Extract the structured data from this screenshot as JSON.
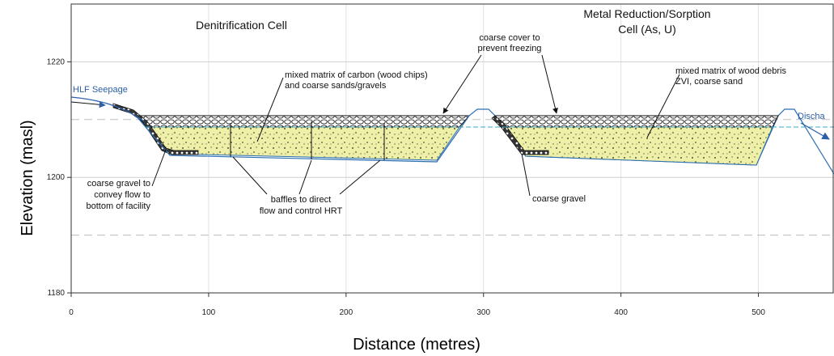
{
  "title_left": "Denitrification Cell",
  "title_right": [
    "Metal Reduction/Sorption",
    "Cell (As, U)"
  ],
  "axes": {
    "x": {
      "label": "Distance (metres)",
      "lim": [
        0,
        555
      ],
      "ticks": [
        0,
        100,
        200,
        300,
        400,
        500
      ]
    },
    "y": {
      "label": "Elevation (masl)",
      "lim": [
        1180,
        1230
      ],
      "ticks": [
        1180,
        1200,
        1220
      ],
      "minor_ticks": [
        1190,
        1210
      ]
    }
  },
  "annotations": {
    "seepage": "HLF Seepage",
    "discharge": "Discha",
    "cover": [
      "coarse cover to",
      "prevent freezing"
    ],
    "matrix_left": [
      "mixed matrix of carbon (wood chips)",
      "and coarse sands/gravels"
    ],
    "matrix_right": [
      "mixed matrix of wood debris",
      "ZVI, coarse sand"
    ],
    "gravel_left": [
      "coarse gravel to",
      "convey flow to",
      "bottom of facility"
    ],
    "baffles": [
      "baffles to direct",
      "flow and control HRT"
    ],
    "gravel_right": "coarse gravel"
  }
}
